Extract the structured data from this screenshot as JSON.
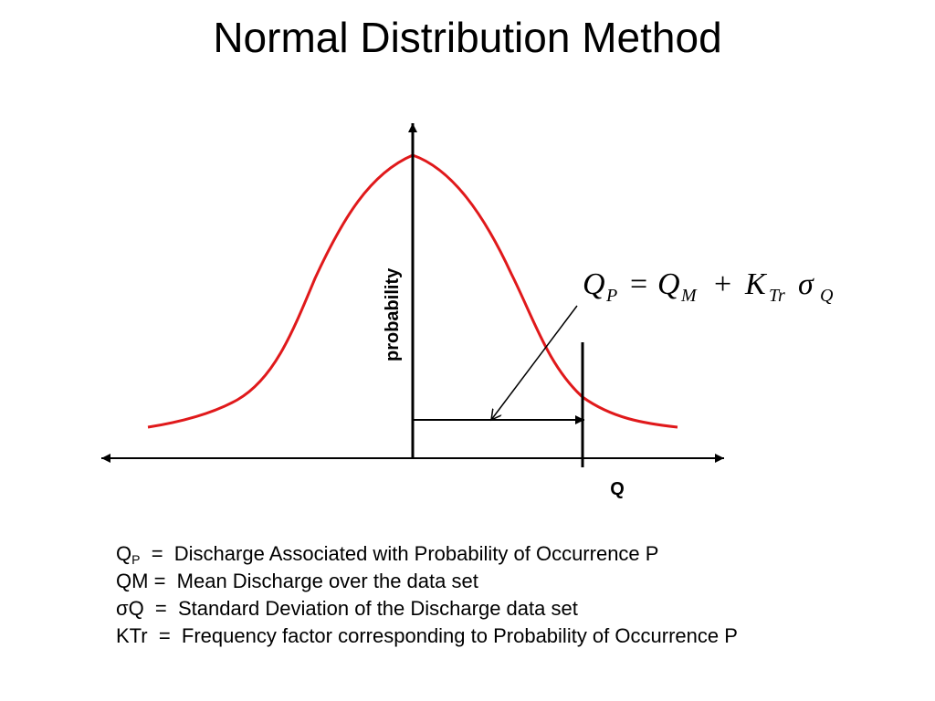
{
  "title": "Normal Distribution Method",
  "diagram": {
    "y_axis_label": "probability",
    "x_marker_label": "Q",
    "curve_color": "#e0191b"
  },
  "equation": {
    "lhs_symbol": "Q",
    "lhs_sub": "P",
    "equals": "=",
    "mean_symbol": "Q",
    "mean_sub": "M",
    "plus": "+",
    "k_symbol": "K",
    "k_sub": "Tr",
    "sigma_symbol": "σ",
    "sigma_sub": "Q"
  },
  "legend": [
    {
      "term": "Q",
      "term_sub": "P",
      "separator": "  =  ",
      "definition": "Discharge Associated with Probability of Occurrence P"
    },
    {
      "term": "QM",
      "term_sub": "",
      "separator": " =  ",
      "definition": "Mean Discharge over the data set"
    },
    {
      "term": "σQ",
      "term_sub": "",
      "separator": "  =  ",
      "definition": "Standard Deviation of the Discharge data set"
    },
    {
      "term": "KTr",
      "term_sub": "",
      "separator": "  =  ",
      "definition": "Frequency factor corresponding to Probability of Occurrence P"
    }
  ]
}
